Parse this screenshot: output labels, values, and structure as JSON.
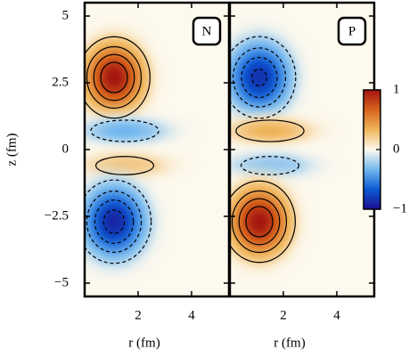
{
  "chart_data": {
    "type": "heatmap",
    "y_label": "z (fm)",
    "xlim": [
      0,
      5.4
    ],
    "xticks": [
      2,
      4
    ],
    "ylim": [
      -5.5,
      5.5
    ],
    "yticks": [
      5,
      2.5,
      0,
      {
        "value": -2.5,
        "label": "−2.5"
      },
      {
        "value": -5,
        "label": "−5"
      }
    ],
    "clim": [
      -1,
      1
    ],
    "cticks": [
      1,
      0,
      {
        "value": -1,
        "label": "−1"
      }
    ],
    "colormap": [
      "#1c0d8e",
      "#0b5ad4",
      "#73b8ee",
      "#fdf9ee",
      "#efb55c",
      "#d6641c",
      "#a3120f"
    ],
    "contour_levels": [
      0.2,
      0.4,
      0.6,
      0.8
    ],
    "panels": [
      {
        "label": "N",
        "x_label": "r (fm)",
        "lobes": [
          {
            "r": 1.1,
            "z": 2.7,
            "value": 1,
            "sr": 0.75,
            "sz": 0.85
          },
          {
            "r": 1.5,
            "z": 0.7,
            "value": -0.35,
            "sr": 1.2,
            "sz": 0.38
          },
          {
            "r": 1.5,
            "z": -0.6,
            "value": 0.3,
            "sr": 1.2,
            "sz": 0.38
          },
          {
            "r": 1.1,
            "z": -2.7,
            "value": -0.9,
            "sr": 0.8,
            "sz": 0.9
          }
        ]
      },
      {
        "label": "P",
        "x_label": "r (fm)",
        "lobes": [
          {
            "r": 1.1,
            "z": 2.7,
            "value": -0.85,
            "sr": 0.8,
            "sz": 0.9
          },
          {
            "r": 1.5,
            "z": 0.7,
            "value": 0.35,
            "sr": 1.2,
            "sz": 0.38
          },
          {
            "r": 1.5,
            "z": -0.6,
            "value": -0.3,
            "sr": 1.2,
            "sz": 0.38
          },
          {
            "r": 1.1,
            "z": -2.7,
            "value": 1,
            "sr": 0.75,
            "sz": 0.85
          }
        ]
      }
    ]
  }
}
